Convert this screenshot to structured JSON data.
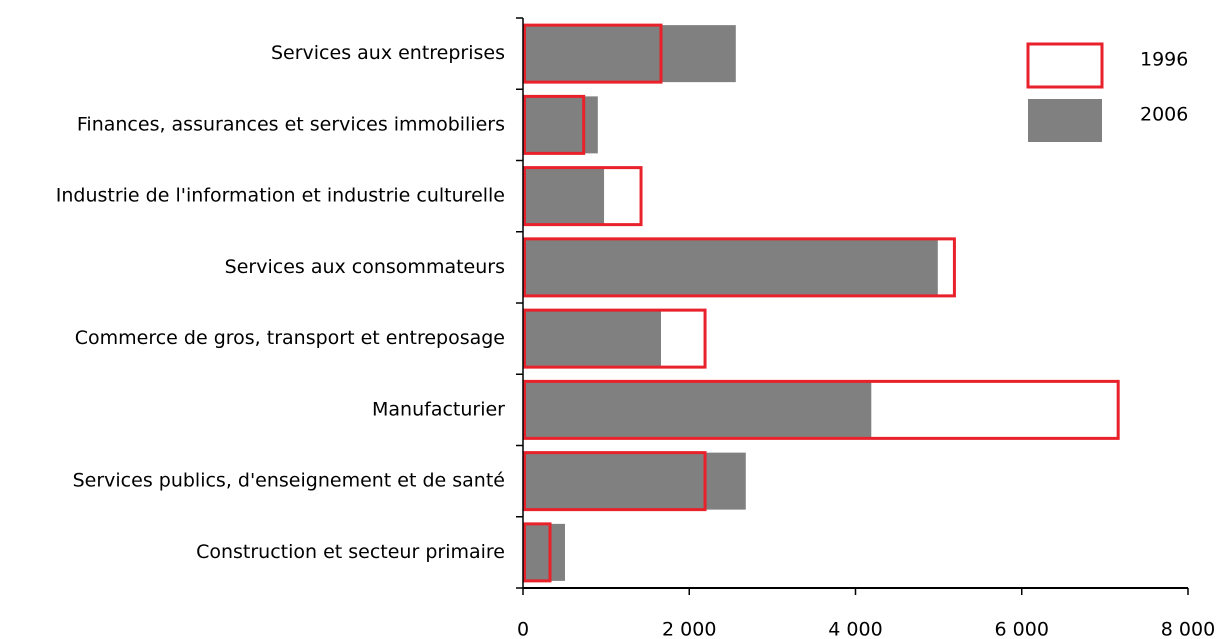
{
  "chart_data": {
    "type": "overlap-hbar",
    "categories": [
      "Services aux entreprises",
      "Finances, assurances et services immobiliers",
      "Industrie de l'information et industrie culturelle",
      "Services aux consommateurs",
      "Commerce de gros, transport et entreposage",
      "Manufacturier",
      "Services publics, d'enseignement et de santé",
      "Construction et secteur primaire"
    ],
    "series": [
      {
        "name": "1996",
        "color": "#e8212b",
        "outline": true,
        "values": [
          1660,
          730,
          1420,
          5190,
          2190,
          7160,
          2190,
          325
        ]
      },
      {
        "name": "2006",
        "color": "#808080",
        "outline": false,
        "values": [
          2560,
          900,
          975,
          4990,
          1660,
          4190,
          2680,
          505
        ]
      }
    ],
    "xlim": [
      0,
      8000
    ],
    "xticks": [
      0,
      {
        "value": 2000,
        "label": "2 000"
      },
      {
        "value": 4000,
        "label": "4 000"
      },
      {
        "value": 6000,
        "label": "6 000"
      },
      {
        "value": 8000,
        "label": "8 000"
      }
    ],
    "legend": "top-right"
  }
}
